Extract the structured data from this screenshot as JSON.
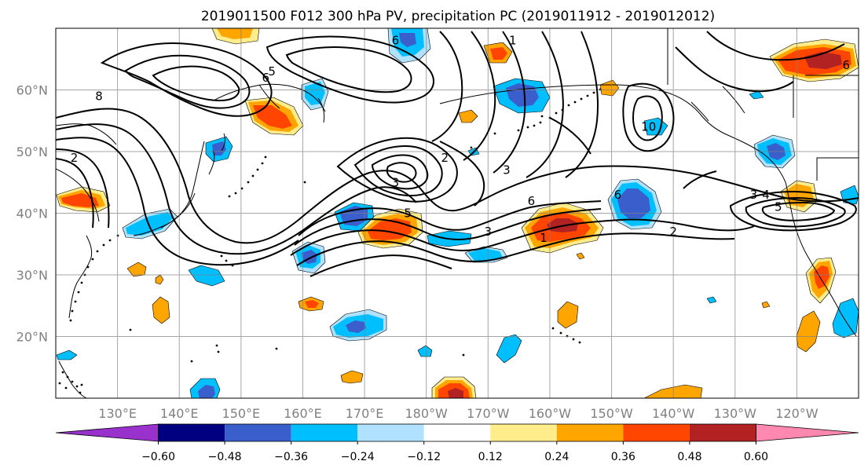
{
  "title": "2019011500 F012 300 hPa PV, precipitation PC (2019011912 - 2019012012)",
  "map": {
    "lon_range": [
      120,
      250
    ],
    "lat_range": [
      10,
      70
    ],
    "lat_ticks": [
      {
        "lat": 60,
        "label": "60°N"
      },
      {
        "lat": 50,
        "label": "50°N"
      },
      {
        "lat": 40,
        "label": "40°N"
      },
      {
        "lat": 30,
        "label": "30°N"
      },
      {
        "lat": 20,
        "label": "20°N"
      }
    ],
    "lon_ticks": [
      {
        "lon": 130,
        "label": "130°E"
      },
      {
        "lon": 140,
        "label": "140°E"
      },
      {
        "lon": 150,
        "label": "150°E"
      },
      {
        "lon": 160,
        "label": "160°E"
      },
      {
        "lon": 170,
        "label": "170°E"
      },
      {
        "lon": 180,
        "label": "180°W"
      },
      {
        "lon": 190,
        "label": "170°W"
      },
      {
        "lon": 200,
        "label": "160°W"
      },
      {
        "lon": 210,
        "label": "150°W"
      },
      {
        "lon": 220,
        "label": "140°W"
      },
      {
        "lon": 230,
        "label": "130°W"
      },
      {
        "lon": 240,
        "label": "120°W"
      }
    ],
    "grid": true,
    "pv_contour_labels": [
      {
        "text": "8",
        "lon": 127,
        "lat": 59
      },
      {
        "text": "2",
        "lon": 123,
        "lat": 49
      },
      {
        "text": "6",
        "lon": 154,
        "lat": 62
      },
      {
        "text": "5",
        "lon": 155,
        "lat": 63
      },
      {
        "text": "2",
        "lon": 183,
        "lat": 49
      },
      {
        "text": "3",
        "lon": 175,
        "lat": 45
      },
      {
        "text": "5",
        "lon": 177,
        "lat": 40
      },
      {
        "text": "3",
        "lon": 190,
        "lat": 37
      },
      {
        "text": "6",
        "lon": 197,
        "lat": 42
      },
      {
        "text": "1",
        "lon": 199,
        "lat": 36
      },
      {
        "text": "6",
        "lon": 211,
        "lat": 43
      },
      {
        "text": "2",
        "lon": 220,
        "lat": 37
      },
      {
        "text": "3",
        "lon": 233,
        "lat": 43
      },
      {
        "text": "4",
        "lon": 235,
        "lat": 43
      },
      {
        "text": "5",
        "lon": 237,
        "lat": 41
      },
      {
        "text": "10",
        "lon": 216,
        "lat": 54
      },
      {
        "text": "1",
        "lon": 194,
        "lat": 68
      },
      {
        "text": "3",
        "lon": 193,
        "lat": 47
      },
      {
        "text": "6",
        "lon": 175,
        "lat": 68
      },
      {
        "text": "6",
        "lon": 248,
        "lat": 64
      }
    ]
  },
  "colorbar": {
    "labels": [
      "−0.60",
      "−0.48",
      "−0.36",
      "−0.24",
      "−0.12",
      "0.12",
      "0.24",
      "0.36",
      "0.48",
      "0.60"
    ],
    "low_extend_color": "#9932cc",
    "high_extend_color": "#ff88b0",
    "colors": [
      "#000080",
      "#3a5fcd",
      "#00bfff",
      "#b0e2ff",
      "#ffffff",
      "#ffec8b",
      "#ffa500",
      "#ff4500",
      "#b22222"
    ],
    "anomaly_colors": {
      "neg_strong": "#3a5fcd",
      "neg_mid": "#00bfff",
      "neg_weak": "#b0e2ff",
      "pos_weak": "#ffec8b",
      "pos_mid": "#ffa500",
      "pos_strong": "#ff4500",
      "pos_max": "#b22222"
    }
  }
}
